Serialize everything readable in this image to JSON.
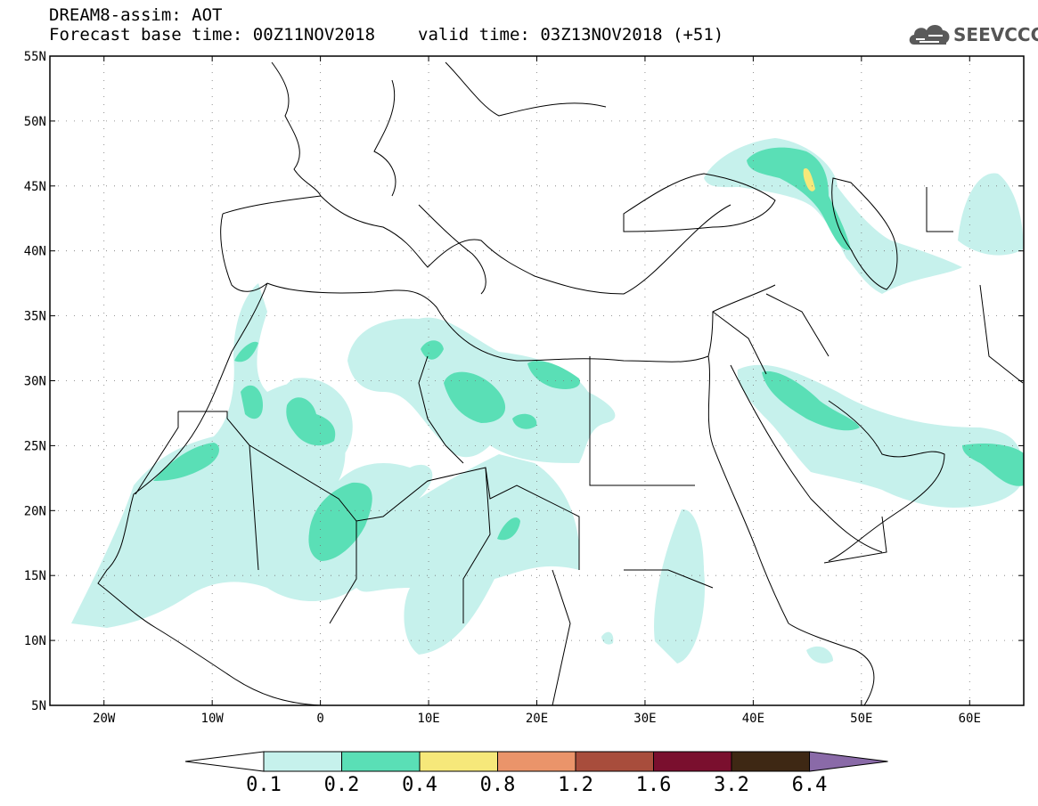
{
  "header": {
    "line1": "DREAM8-assim: AOT",
    "base_time": "Forecast base time: 00Z11NOV2018",
    "valid_time": "valid time: 03Z13NOV2018 (+51)"
  },
  "logo": {
    "icon": "cloud-icon",
    "text": "SEEVCCC"
  },
  "map": {
    "lon_range": [
      -25,
      65
    ],
    "lat_range": [
      5,
      55
    ],
    "lat_ticks": [
      "5N",
      "10N",
      "15N",
      "20N",
      "25N",
      "30N",
      "35N",
      "40N",
      "45N",
      "50N",
      "55N"
    ],
    "lon_ticks": [
      "20W",
      "10W",
      "0",
      "10E",
      "20E",
      "30E",
      "40E",
      "50E",
      "60E"
    ],
    "grid": true,
    "coastline_color": "#000000"
  },
  "colorbar": {
    "labels": [
      "0.1",
      "0.2",
      "0.4",
      "0.8",
      "1.2",
      "1.6",
      "3.2",
      "6.4"
    ],
    "colors": [
      "#ffffff",
      "#c6f1ec",
      "#5adfb6",
      "#f6e87a",
      "#ea946a",
      "#a84d3c",
      "#7a0f2e",
      "#3e2814",
      "#8a6aa8"
    ],
    "underflow": "#ffffff",
    "overflow": "#8a6aa8"
  },
  "levels": {
    "low": "#c6f1ec",
    "mid": "#5adfb6",
    "high": "#f6e87a"
  }
}
